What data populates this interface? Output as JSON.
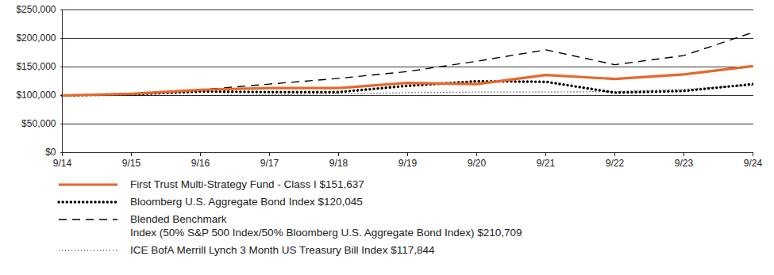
{
  "chart_data": {
    "type": "line",
    "x": [
      "9/14",
      "9/15",
      "9/16",
      "9/17",
      "9/18",
      "9/19",
      "9/20",
      "9/21",
      "9/22",
      "9/23",
      "9/24"
    ],
    "series": [
      {
        "name": "First Trust Multi-Strategy Fund - Class I $151,637",
        "color": "#e8672a",
        "line_style": "solid",
        "values": [
          100000,
          103000,
          110000,
          113000,
          113000,
          122000,
          120000,
          136000,
          129000,
          137000,
          151637
        ]
      },
      {
        "name": "Bloomberg U.S. Aggregate Bond Index $120,045",
        "color": "#000000",
        "line_style": "dotted",
        "values": [
          100000,
          102000,
          107000,
          106000,
          106000,
          117000,
          125000,
          124000,
          105000,
          108000,
          120045
        ]
      },
      {
        "name": "Blended Benchmark\nIndex (50% S&P 500 Index/50% Bloomberg U.S. Aggregate Bond Index) $210,709",
        "color": "#000000",
        "line_style": "dashed",
        "values": [
          100000,
          102000,
          110000,
          120000,
          130000,
          142000,
          160000,
          180000,
          154000,
          170000,
          210709
        ]
      },
      {
        "name": "ICE BofA Merrill Lynch 3 Month US Treasury Bill Index $117,844",
        "color": "#000000",
        "line_style": "fine_dotted",
        "values": [
          100000,
          100000,
          100000,
          101000,
          103000,
          105000,
          106000,
          106000,
          107000,
          111000,
          117844
        ]
      }
    ],
    "ylim": [
      0,
      250000
    ],
    "yticks": [
      {
        "value": 0,
        "label": "$0"
      },
      {
        "value": 50000,
        "label": "$50,000"
      },
      {
        "value": 100000,
        "label": "$100,000"
      },
      {
        "value": 150000,
        "label": "$150,000"
      },
      {
        "value": 200000,
        "label": "$200,000"
      },
      {
        "value": 250000,
        "label": "$250,000"
      }
    ],
    "grid": true,
    "legend": "bottom"
  }
}
